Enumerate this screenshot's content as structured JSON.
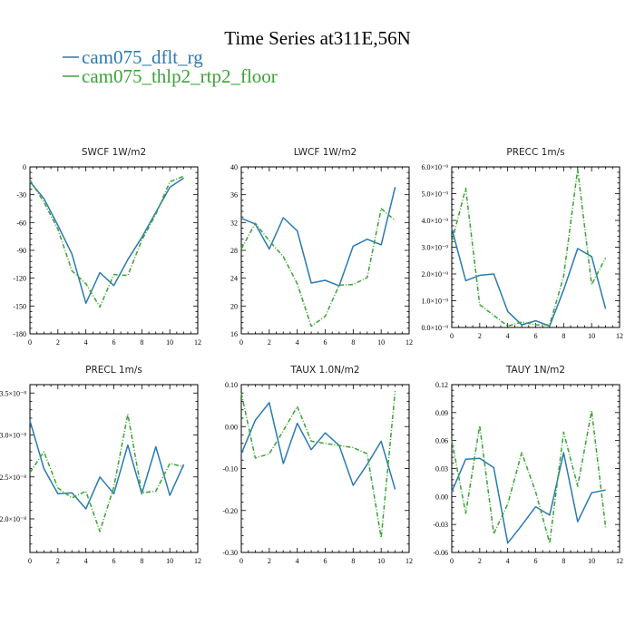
{
  "title": "Time Series at311E,56N",
  "legend": [
    {
      "label": "cam075_dflt_rg",
      "color": "#2a7ab0"
    },
    {
      "label": "cam075_thlp2_rtp2_floor",
      "color": "#3aa335"
    }
  ],
  "chart_data": [
    {
      "type": "line",
      "title": "SWCF   1W/m2",
      "x": [
        0,
        1,
        2,
        3,
        4,
        5,
        6,
        7,
        8,
        9,
        10,
        11
      ],
      "xlim": [
        0,
        12
      ],
      "xticks": [
        "0",
        "2",
        "4",
        "6",
        "8",
        "10",
        "12"
      ],
      "ylim": [
        -180,
        0
      ],
      "yticks": [
        "-180",
        "-150",
        "-120",
        "-90",
        "-60",
        "-30",
        "0"
      ],
      "series": [
        {
          "name": "cam075_dflt_rg",
          "values": [
            -16,
            -34,
            -63,
            -94,
            -147,
            -114,
            -128,
            -100,
            -76,
            -49,
            -22,
            -12
          ]
        },
        {
          "name": "cam075_thlp2_rtp2_floor",
          "values": [
            -14,
            -38,
            -67,
            -112,
            -126,
            -151,
            -116,
            -117,
            -79,
            -51,
            -16,
            -10
          ]
        }
      ]
    },
    {
      "type": "line",
      "title": "LWCF   1W/m2",
      "x": [
        0,
        1,
        2,
        3,
        4,
        5,
        6,
        7,
        8,
        9,
        10,
        11
      ],
      "xlim": [
        0,
        12
      ],
      "xticks": [
        "0",
        "2",
        "4",
        "6",
        "8",
        "10",
        "12"
      ],
      "ylim": [
        16,
        40
      ],
      "yticks": [
        "16",
        "20",
        "24",
        "28",
        "32",
        "36",
        "40"
      ],
      "series": [
        {
          "name": "cam075_dflt_rg",
          "values": [
            32.6,
            31.8,
            28.2,
            32.7,
            30.8,
            23.3,
            23.7,
            22.9,
            28.6,
            29.6,
            28.8,
            37.1
          ]
        },
        {
          "name": "cam075_thlp2_rtp2_floor",
          "values": [
            28.2,
            31.9,
            29.4,
            27.1,
            23.2,
            17.1,
            18.5,
            23.0,
            23.1,
            24.1,
            34.0,
            32.3
          ]
        }
      ]
    },
    {
      "type": "line",
      "title": "PRECC   1m/s",
      "x": [
        0,
        1,
        2,
        3,
        4,
        5,
        6,
        7,
        8,
        9,
        10,
        11
      ],
      "xlim": [
        0,
        12
      ],
      "xticks": [
        "0",
        "2",
        "4",
        "6",
        "8",
        "10",
        "12"
      ],
      "ylim": [
        0,
        6
      ],
      "yticks": [
        "0.0×10⁻⁹",
        "1.0×10⁻⁹",
        "2.0×10⁻⁹",
        "3.0×10⁻⁹",
        "4.0×10⁻⁹",
        "5.0×10⁻⁹",
        "6.0×10⁻⁹"
      ],
      "series": [
        {
          "name": "cam075_dflt_rg",
          "values": [
            3.7,
            1.75,
            1.95,
            2.0,
            0.6,
            0.1,
            0.25,
            0.05,
            1.4,
            2.95,
            2.65,
            0.7
          ]
        },
        {
          "name": "cam075_thlp2_rtp2_floor",
          "values": [
            3.2,
            5.2,
            0.85,
            0.45,
            0.05,
            0.2,
            0.1,
            0.1,
            1.9,
            5.9,
            1.6,
            2.6
          ]
        }
      ]
    },
    {
      "type": "line",
      "title": "PRECL   1m/s",
      "x": [
        0,
        1,
        2,
        3,
        4,
        5,
        6,
        7,
        8,
        9,
        10,
        11
      ],
      "xlim": [
        0,
        12
      ],
      "xticks": [
        "0",
        "2",
        "4",
        "6",
        "8",
        "10",
        "12"
      ],
      "ylim": [
        1.6,
        3.6
      ],
      "yticks": [
        "2.0×10⁻⁸",
        "2.5×10⁻⁸",
        "3.0×10⁻⁸",
        "3.5×10⁻⁸"
      ],
      "series": [
        {
          "name": "cam075_dflt_rg",
          "values": [
            3.17,
            2.6,
            2.3,
            2.31,
            2.12,
            2.5,
            2.3,
            2.88,
            2.3,
            2.86,
            2.28,
            2.65
          ]
        },
        {
          "name": "cam075_thlp2_rtp2_floor",
          "values": [
            2.55,
            2.8,
            2.37,
            2.25,
            2.33,
            1.85,
            2.38,
            3.25,
            2.31,
            2.33,
            2.66,
            2.62
          ]
        }
      ]
    },
    {
      "type": "line",
      "title": "TAUX   1.0N/m2",
      "x": [
        0,
        1,
        2,
        3,
        4,
        5,
        6,
        7,
        8,
        9,
        10,
        11
      ],
      "xlim": [
        0,
        12
      ],
      "xticks": [
        "0",
        "2",
        "4",
        "6",
        "8",
        "10",
        "12"
      ],
      "ylim": [
        -0.3,
        0.1
      ],
      "yticks": [
        "-0.30",
        "-0.20",
        "-0.10",
        "0.00",
        "0.10"
      ],
      "series": [
        {
          "name": "cam075_dflt_rg",
          "values": [
            -0.065,
            0.015,
            0.057,
            -0.088,
            0.008,
            -0.055,
            -0.015,
            -0.045,
            -0.14,
            -0.09,
            -0.035,
            -0.15
          ]
        },
        {
          "name": "cam075_thlp2_rtp2_floor",
          "values": [
            0.08,
            -0.075,
            -0.065,
            -0.01,
            0.048,
            -0.035,
            -0.04,
            -0.045,
            -0.05,
            -0.065,
            -0.265,
            0.085
          ]
        }
      ]
    },
    {
      "type": "line",
      "title": "TAUY   1N/m2",
      "x": [
        0,
        1,
        2,
        3,
        4,
        5,
        6,
        7,
        8,
        9,
        10,
        11
      ],
      "xlim": [
        0,
        12
      ],
      "xticks": [
        "0",
        "2",
        "4",
        "6",
        "8",
        "10",
        "12"
      ],
      "ylim": [
        -0.06,
        0.12
      ],
      "yticks": [
        "-0.06",
        "-0.03",
        "0.00",
        "0.03",
        "0.06",
        "0.09",
        "0.12"
      ],
      "series": [
        {
          "name": "cam075_dflt_rg",
          "values": [
            0.005,
            0.04,
            0.041,
            0.031,
            -0.05,
            -0.031,
            -0.011,
            -0.02,
            0.047,
            -0.027,
            0.004,
            0.007
          ]
        },
        {
          "name": "cam075_thlp2_rtp2_floor",
          "values": [
            0.06,
            -0.018,
            0.076,
            -0.04,
            -0.008,
            0.047,
            0.005,
            -0.05,
            0.069,
            0.011,
            0.092,
            -0.033
          ]
        }
      ]
    }
  ]
}
